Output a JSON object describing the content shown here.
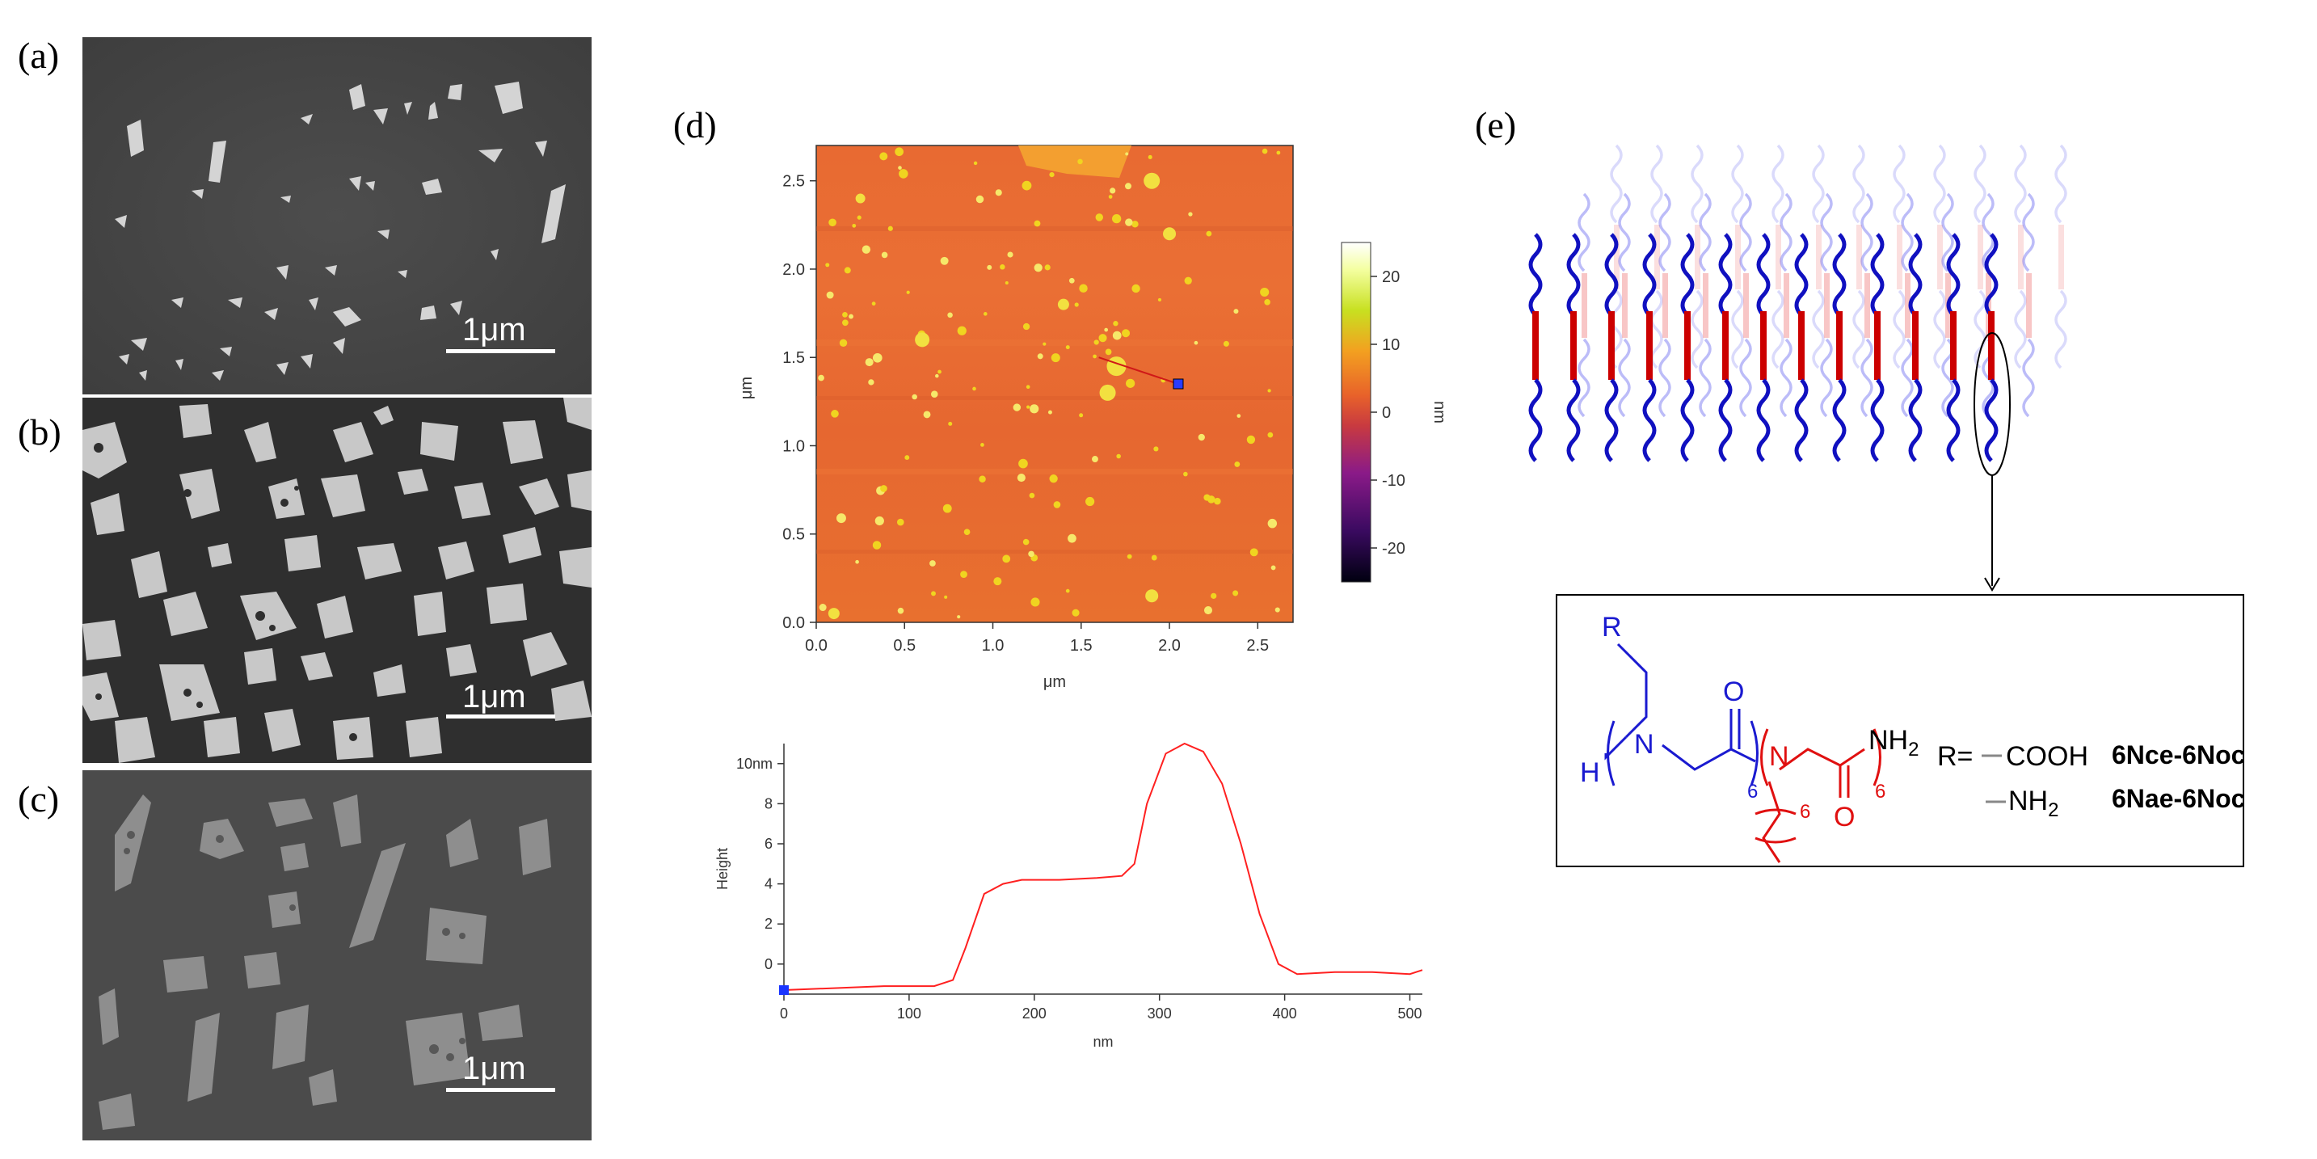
{
  "panels": {
    "a": {
      "label": "(a)",
      "scale_bar": "1μm"
    },
    "b": {
      "label": "(b)",
      "scale_bar": "1μm"
    },
    "c": {
      "label": "(c)",
      "scale_bar": "1μm"
    },
    "d": {
      "label": "(d)"
    },
    "e": {
      "label": "(e)"
    }
  },
  "chart_data": [
    {
      "type": "heatmap",
      "title": "",
      "xlabel": "μm",
      "ylabel": "μm",
      "xlim": [
        0,
        2.7
      ],
      "ylim": [
        0,
        2.7
      ],
      "x_ticks": [
        "0.0",
        "0.5",
        "1.0",
        "1.5",
        "2.0",
        "2.5"
      ],
      "y_ticks": [
        "0.0",
        "0.5",
        "1.0",
        "1.5",
        "2.0",
        "2.5"
      ],
      "colorbar": {
        "label": "nm",
        "range": [
          -25,
          25
        ],
        "ticks": [
          "20",
          "10",
          "0",
          "-10",
          "-20"
        ],
        "colors": [
          "#000010",
          "#3a0a60",
          "#8a1a88",
          "#c83a40",
          "#e8622a",
          "#f3a020",
          "#c8e020",
          "#f4ffa0",
          "#ffffff"
        ]
      },
      "line_profile": {
        "from": [
          1.6,
          1.5
        ],
        "to": [
          2.05,
          1.35
        ]
      }
    },
    {
      "type": "line",
      "title": "",
      "xlabel": "nm",
      "ylabel": "Height",
      "xlim": [
        0,
        510
      ],
      "ylim": [
        -1.5,
        11
      ],
      "x_ticks": [
        "0",
        "100",
        "200",
        "300",
        "400",
        "500"
      ],
      "y_ticks": [
        "10nm",
        "8",
        "6",
        "4",
        "2",
        "0"
      ],
      "series": [
        {
          "name": "height profile",
          "color": "#ff2020",
          "x": [
            0,
            40,
            80,
            100,
            120,
            135,
            145,
            160,
            175,
            190,
            220,
            250,
            270,
            280,
            290,
            305,
            320,
            335,
            350,
            365,
            380,
            395,
            410,
            440,
            470,
            500,
            510
          ],
          "y": [
            -1.3,
            -1.2,
            -1.1,
            -1.1,
            -1.1,
            -0.8,
            0.8,
            3.5,
            4.0,
            4.2,
            4.2,
            4.3,
            4.4,
            5.0,
            8.0,
            10.5,
            11.0,
            10.6,
            9.0,
            6.0,
            2.5,
            0.0,
            -0.5,
            -0.4,
            -0.4,
            -0.5,
            -0.3
          ]
        }
      ]
    }
  ],
  "molecule": {
    "R_label": "R",
    "N1": "N",
    "H": "H",
    "O1": "O",
    "N2": "N",
    "O2": "O",
    "NH2": "NH",
    "NH2_sub": "2",
    "sub6a": "6",
    "sub6b": "6",
    "sub6c": "6",
    "R_eq": "R=",
    "cooh": "COOH",
    "nh2_opt": "NH",
    "nh2_opt_sub": "2",
    "name1": "6Nce-6Noc",
    "name2": "6Nae-6Noc"
  }
}
